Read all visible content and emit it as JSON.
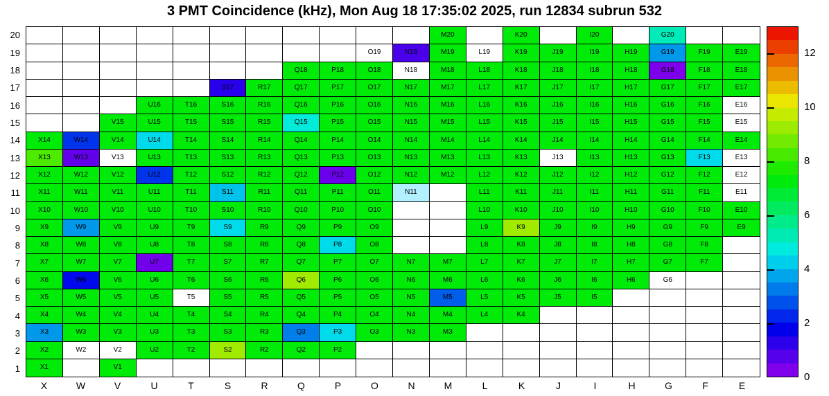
{
  "title": "3 PMT Coincidence (kHz), Mon Aug 18 17:35:02 2025, run 12834 subrun 532",
  "chart_data": {
    "type": "heatmap",
    "title": "3 PMT Coincidence (kHz), Mon Aug 18 17:35:02 2025, run 12834 subrun 532",
    "unit": "kHz",
    "columns": [
      "X",
      "W",
      "V",
      "U",
      "T",
      "S",
      "R",
      "Q",
      "P",
      "O",
      "N",
      "M",
      "L",
      "K",
      "J",
      "I",
      "H",
      "G",
      "F",
      "E"
    ],
    "colorbar": {
      "min": 0,
      "max": 13,
      "ticks": [
        12,
        10,
        8,
        6,
        4,
        2,
        0
      ]
    },
    "rows": [
      {
        "y": 20,
        "cells": [
          [
            "M20",
            7.3
          ],
          [
            "K20",
            7.3
          ],
          [
            "I20",
            7.3
          ],
          [
            "G20",
            5.2
          ]
        ]
      },
      {
        "y": 19,
        "cells": [
          [
            "O19",
            null
          ],
          [
            "N19",
            0.9
          ],
          [
            "M19",
            7.3
          ],
          [
            "L19",
            null
          ],
          [
            "K19",
            7.3
          ],
          [
            "J19",
            7.3
          ],
          [
            "I19",
            7.3
          ],
          [
            "H19",
            7.3
          ],
          [
            "G19",
            3.6
          ],
          [
            "F19",
            7.3
          ],
          [
            "E19",
            7.3
          ]
        ]
      },
      {
        "y": 18,
        "cells": [
          [
            "Q18",
            7.3
          ],
          [
            "P18",
            7.3
          ],
          [
            "O18",
            7.3
          ],
          [
            "N18",
            null
          ],
          [
            "M18",
            7.3
          ],
          [
            "L18",
            7.3
          ],
          [
            "K18",
            7.3
          ],
          [
            "J18",
            7.3
          ],
          [
            "I18",
            7.3
          ],
          [
            "H18",
            7.3
          ],
          [
            "G18",
            0.3
          ],
          [
            "F18",
            7.3
          ],
          [
            "E18",
            7.3
          ]
        ]
      },
      {
        "y": 17,
        "cells": [
          [
            "S17",
            1.3
          ],
          [
            "R17",
            7.3
          ],
          [
            "Q17",
            7.3
          ],
          [
            "P17",
            7.3
          ],
          [
            "O17",
            7.3
          ],
          [
            "N17",
            7.3
          ],
          [
            "M17",
            7.3
          ],
          [
            "L17",
            7.3
          ],
          [
            "K17",
            7.3
          ],
          [
            "J17",
            7.3
          ],
          [
            "I17",
            7.3
          ],
          [
            "H17",
            7.3
          ],
          [
            "G17",
            7.3
          ],
          [
            "F17",
            7.3
          ],
          [
            "E17",
            7.3
          ]
        ]
      },
      {
        "y": 16,
        "cells": [
          [
            "U16",
            7.3
          ],
          [
            "T16",
            7.3
          ],
          [
            "S16",
            7.3
          ],
          [
            "R16",
            7.3
          ],
          [
            "Q16",
            7.3
          ],
          [
            "P16",
            7.3
          ],
          [
            "O16",
            7.3
          ],
          [
            "N16",
            7.3
          ],
          [
            "M16",
            7.3
          ],
          [
            "L16",
            7.3
          ],
          [
            "K16",
            7.3
          ],
          [
            "J16",
            7.3
          ],
          [
            "I16",
            7.3
          ],
          [
            "H16",
            7.3
          ],
          [
            "G16",
            7.3
          ],
          [
            "F16",
            7.3
          ],
          [
            "E16",
            null
          ]
        ]
      },
      {
        "y": 15,
        "cells": [
          [
            "V15",
            7.3
          ],
          [
            "U15",
            7.3
          ],
          [
            "T15",
            7.3
          ],
          [
            "S15",
            7.3
          ],
          [
            "R15",
            7.3
          ],
          [
            "Q15",
            4.8
          ],
          [
            "P15",
            7.3
          ],
          [
            "O15",
            7.3
          ],
          [
            "N15",
            7.3
          ],
          [
            "M15",
            7.3
          ],
          [
            "L15",
            7.3
          ],
          [
            "K15",
            7.3
          ],
          [
            "J15",
            7.3
          ],
          [
            "I15",
            7.3
          ],
          [
            "H15",
            7.3
          ],
          [
            "G15",
            7.3
          ],
          [
            "F15",
            7.3
          ],
          [
            "E15",
            null
          ]
        ]
      },
      {
        "y": 14,
        "cells": [
          [
            "X14",
            7.3
          ],
          [
            "W14",
            2.4
          ],
          [
            "V14",
            7.3
          ],
          [
            "U14",
            4.4
          ],
          [
            "T14",
            7.3
          ],
          [
            "S14",
            7.3
          ],
          [
            "R14",
            7.3
          ],
          [
            "Q14",
            7.3
          ],
          [
            "P14",
            7.3
          ],
          [
            "O14",
            7.3
          ],
          [
            "N14",
            7.3
          ],
          [
            "M14",
            7.3
          ],
          [
            "L14",
            7.3
          ],
          [
            "K14",
            7.3
          ],
          [
            "J14",
            7.3
          ],
          [
            "I14",
            7.3
          ],
          [
            "H14",
            7.3
          ],
          [
            "G14",
            7.3
          ],
          [
            "F14",
            7.3
          ],
          [
            "E14",
            7.3
          ]
        ]
      },
      {
        "y": 13,
        "cells": [
          [
            "X13",
            8.3
          ],
          [
            "W13",
            0.6
          ],
          [
            "V13",
            null
          ],
          [
            "U13",
            7.3
          ],
          [
            "T13",
            7.3
          ],
          [
            "S13",
            7.3
          ],
          [
            "R13",
            7.3
          ],
          [
            "Q13",
            7.3
          ],
          [
            "P13",
            7.3
          ],
          [
            "O13",
            7.3
          ],
          [
            "N13",
            7.3
          ],
          [
            "M13",
            7.3
          ],
          [
            "L13",
            7.3
          ],
          [
            "K13",
            7.3
          ],
          [
            "J13",
            null
          ],
          [
            "I13",
            7.3
          ],
          [
            "H13",
            7.3
          ],
          [
            "G13",
            7.3
          ],
          [
            "F13",
            4.4
          ],
          [
            "E13",
            null
          ]
        ]
      },
      {
        "y": 12,
        "cells": [
          [
            "X12",
            7.3
          ],
          [
            "W12",
            7.3
          ],
          [
            "V12",
            7.3
          ],
          [
            "U12",
            2.4
          ],
          [
            "T12",
            7.3
          ],
          [
            "S12",
            7.3
          ],
          [
            "R12",
            7.3
          ],
          [
            "Q12",
            7.3
          ],
          [
            "P12",
            0.5
          ],
          [
            "O12",
            7.3
          ],
          [
            "N12",
            7.3
          ],
          [
            "M12",
            7.3
          ],
          [
            "L12",
            7.3
          ],
          [
            "K12",
            7.3
          ],
          [
            "J12",
            7.3
          ],
          [
            "I12",
            7.3
          ],
          [
            "H12",
            7.3
          ],
          [
            "G12",
            7.3
          ],
          [
            "F12",
            7.3
          ],
          [
            "E12",
            null
          ]
        ]
      },
      {
        "y": 11,
        "cells": [
          [
            "X11",
            7.3
          ],
          [
            "W11",
            7.3
          ],
          [
            "V11",
            7.3
          ],
          [
            "U11",
            7.3
          ],
          [
            "T11",
            7.3
          ],
          [
            "S11",
            4.1
          ],
          [
            "R11",
            7.3
          ],
          [
            "Q11",
            7.3
          ],
          [
            "P11",
            7.3
          ],
          [
            "O11",
            7.3
          ],
          [
            "N11",
            4.6,
            "#b0f0ff"
          ],
          [
            "L11",
            7.3
          ],
          [
            "K11",
            7.3
          ],
          [
            "J11",
            7.3
          ],
          [
            "I11",
            7.3
          ],
          [
            "H11",
            7.3
          ],
          [
            "G11",
            7.3
          ],
          [
            "F11",
            7.3
          ],
          [
            "E11",
            null
          ]
        ]
      },
      {
        "y": 10,
        "cells": [
          [
            "X10",
            7.3
          ],
          [
            "W10",
            7.3
          ],
          [
            "V10",
            7.3
          ],
          [
            "U10",
            7.3
          ],
          [
            "T10",
            7.3
          ],
          [
            "S10",
            7.3
          ],
          [
            "R10",
            7.3
          ],
          [
            "Q10",
            7.3
          ],
          [
            "P10",
            7.3
          ],
          [
            "O10",
            7.3
          ],
          [
            "L10",
            7.3
          ],
          [
            "K10",
            7.3
          ],
          [
            "J10",
            7.3
          ],
          [
            "I10",
            7.3
          ],
          [
            "H10",
            7.3
          ],
          [
            "G10",
            7.3
          ],
          [
            "F10",
            7.3
          ],
          [
            "E10",
            7.3
          ]
        ]
      },
      {
        "y": 9,
        "cells": [
          [
            "X9",
            7.3
          ],
          [
            "W9",
            3.6
          ],
          [
            "V9",
            7.3
          ],
          [
            "U9",
            7.3
          ],
          [
            "T9",
            7.3
          ],
          [
            "S9",
            4.4
          ],
          [
            "R9",
            7.3
          ],
          [
            "Q9",
            7.3
          ],
          [
            "P9",
            7.3
          ],
          [
            "O9",
            7.3
          ],
          [
            "L9",
            7.3
          ],
          [
            "K9",
            9.3
          ],
          [
            "J9",
            7.3
          ],
          [
            "I9",
            7.3
          ],
          [
            "H9",
            7.3
          ],
          [
            "G9",
            7.3
          ],
          [
            "F9",
            7.3
          ],
          [
            "E9",
            7.3
          ]
        ]
      },
      {
        "y": 8,
        "cells": [
          [
            "X8",
            7.3
          ],
          [
            "W8",
            7.3
          ],
          [
            "V8",
            7.3
          ],
          [
            "U8",
            7.3
          ],
          [
            "T8",
            7.3
          ],
          [
            "S8",
            7.3
          ],
          [
            "R8",
            7.3
          ],
          [
            "Q8",
            7.3
          ],
          [
            "P8",
            4.4
          ],
          [
            "O8",
            7.3
          ],
          [
            "L8",
            7.3
          ],
          [
            "K8",
            7.3
          ],
          [
            "J8",
            7.3
          ],
          [
            "I8",
            7.3
          ],
          [
            "H8",
            7.3
          ],
          [
            "G8",
            7.3
          ],
          [
            "F8",
            7.3
          ]
        ]
      },
      {
        "y": 7,
        "cells": [
          [
            "X7",
            7.3
          ],
          [
            "W7",
            7.3
          ],
          [
            "V7",
            7.3
          ],
          [
            "U7",
            0.4
          ],
          [
            "T7",
            7.3
          ],
          [
            "S7",
            7.3
          ],
          [
            "R7",
            7.3
          ],
          [
            "Q7",
            7.3
          ],
          [
            "P7",
            7.3
          ],
          [
            "O7",
            7.3
          ],
          [
            "N7",
            7.3
          ],
          [
            "M7",
            7.3
          ],
          [
            "L7",
            7.3
          ],
          [
            "K7",
            7.3
          ],
          [
            "J7",
            7.3
          ],
          [
            "I7",
            7.3
          ],
          [
            "H7",
            7.3
          ],
          [
            "G7",
            7.3
          ],
          [
            "F7",
            7.3
          ]
        ]
      },
      {
        "y": 6,
        "cells": [
          [
            "X6",
            7.3
          ],
          [
            "W6",
            1.9
          ],
          [
            "V6",
            7.3
          ],
          [
            "U6",
            7.3
          ],
          [
            "T6",
            7.3
          ],
          [
            "S6",
            7.3
          ],
          [
            "R6",
            7.3
          ],
          [
            "Q6",
            9.3
          ],
          [
            "P6",
            7.3
          ],
          [
            "O6",
            7.3
          ],
          [
            "N6",
            7.3
          ],
          [
            "M6",
            7.3
          ],
          [
            "L6",
            7.3
          ],
          [
            "K6",
            7.3
          ],
          [
            "J6",
            7.3
          ],
          [
            "I6",
            7.3
          ],
          [
            "H6",
            7.3
          ],
          [
            "G6",
            null
          ]
        ]
      },
      {
        "y": 5,
        "cells": [
          [
            "X5",
            7.3
          ],
          [
            "W5",
            7.3
          ],
          [
            "V5",
            7.3
          ],
          [
            "U5",
            7.3
          ],
          [
            "T5",
            null
          ],
          [
            "S5",
            7.3
          ],
          [
            "R5",
            7.3
          ],
          [
            "Q5",
            7.3
          ],
          [
            "P5",
            7.3
          ],
          [
            "O5",
            7.3
          ],
          [
            "N5",
            7.3
          ],
          [
            "M5",
            2.9
          ],
          [
            "L5",
            7.3
          ],
          [
            "K5",
            7.3
          ],
          [
            "J5",
            7.3
          ],
          [
            "I5",
            7.3
          ]
        ]
      },
      {
        "y": 4,
        "cells": [
          [
            "X4",
            7.3
          ],
          [
            "W4",
            7.3
          ],
          [
            "V4",
            7.3
          ],
          [
            "U4",
            7.3
          ],
          [
            "T4",
            7.3
          ],
          [
            "S4",
            7.3
          ],
          [
            "R4",
            7.3
          ],
          [
            "Q4",
            7.3
          ],
          [
            "P4",
            7.3
          ],
          [
            "O4",
            7.3
          ],
          [
            "N4",
            7.3
          ],
          [
            "M4",
            7.3
          ],
          [
            "L4",
            7.3
          ],
          [
            "K4",
            7.3
          ]
        ]
      },
      {
        "y": 3,
        "cells": [
          [
            "X3",
            3.6
          ],
          [
            "W3",
            7.3
          ],
          [
            "V3",
            7.3
          ],
          [
            "U3",
            7.3
          ],
          [
            "T3",
            7.3
          ],
          [
            "S3",
            7.3
          ],
          [
            "R3",
            7.3
          ],
          [
            "Q3",
            3.3
          ],
          [
            "P3",
            4.4
          ],
          [
            "O3",
            7.3
          ],
          [
            "N3",
            7.3
          ],
          [
            "M3",
            7.3
          ]
        ]
      },
      {
        "y": 2,
        "cells": [
          [
            "X2",
            7.3
          ],
          [
            "W2",
            null
          ],
          [
            "V2",
            null
          ],
          [
            "U2",
            7.3
          ],
          [
            "T2",
            7.3
          ],
          [
            "S2",
            9.3
          ],
          [
            "R2",
            7.3
          ],
          [
            "Q2",
            7.3
          ],
          [
            "P2",
            7.3
          ]
        ]
      },
      {
        "y": 1,
        "cells": [
          [
            "X1",
            7.3
          ],
          [
            "V1",
            7.3
          ]
        ]
      }
    ]
  }
}
